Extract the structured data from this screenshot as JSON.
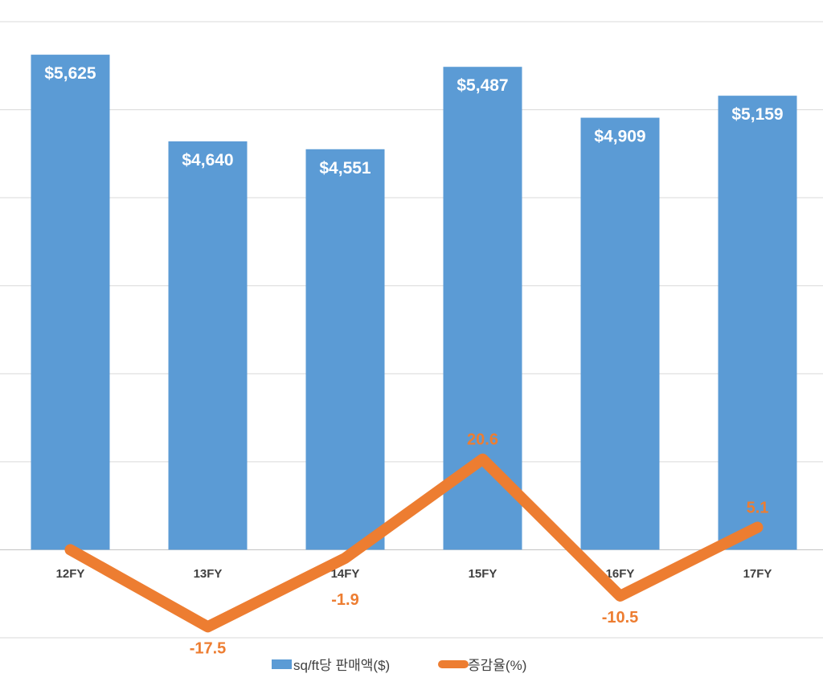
{
  "chart_data": {
    "type": "bar+line",
    "categories": [
      "12FY",
      "13FY",
      "14FY",
      "15FY",
      "16FY",
      "17FY"
    ],
    "series": [
      {
        "name": "sq/ft당 판매액($)",
        "type": "bar",
        "axis": "primary",
        "values": [
          5625,
          4640,
          4551,
          5487,
          4909,
          5159
        ],
        "labels": [
          "$5,625",
          "$4,640",
          "$4,551",
          "$5,487",
          "$4,909",
          "$5,159"
        ],
        "color": "#5B9BD5"
      },
      {
        "name": "증감율(%)",
        "type": "line",
        "axis": "secondary",
        "values": [
          0,
          -17.5,
          -1.9,
          20.6,
          -10.5,
          5.1
        ],
        "labels": [
          null,
          "-17.5",
          "-1.9",
          "20.6",
          "-10.5",
          "5.1"
        ],
        "color": "#ED7D31"
      }
    ],
    "primary_ylim": [
      -1000,
      6000
    ],
    "secondary_ylim": [
      -20,
      120
    ],
    "grid": true,
    "legend": "bottom",
    "gridline_color": "#D9D9D9"
  }
}
